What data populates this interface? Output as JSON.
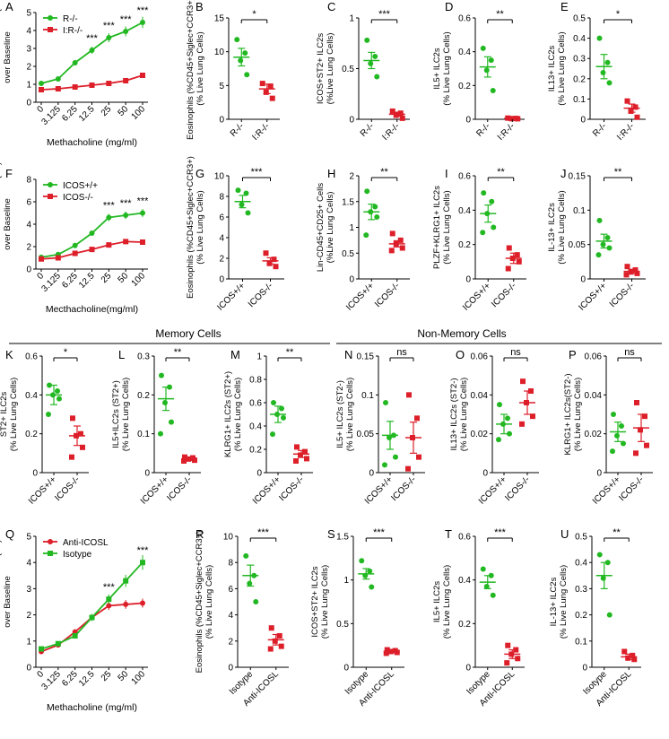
{
  "figure": {
    "section_labels": {
      "memory": "Memory Cells",
      "non_memory": "Non-Memory Cells"
    },
    "colors": {
      "green": "#22b822",
      "red": "#dd1f2a",
      "black": "#000000"
    }
  },
  "chart_data": [
    {
      "id": "A",
      "panel": "A",
      "type": "line",
      "title": "",
      "ylabel": "Fold Increase in Resistance (RL) over Baseline",
      "xlabel": "Methacholine (mg/ml)",
      "categories": [
        "0",
        "3.125",
        "6.25",
        "12.5",
        "25",
        "50",
        "100"
      ],
      "ylim": [
        0,
        5
      ],
      "yticks": [
        0,
        1,
        2,
        3,
        4,
        5
      ],
      "series": [
        {
          "name": "R-/-",
          "color": "green",
          "marker": "circle",
          "values": [
            1.05,
            1.3,
            2.2,
            2.9,
            3.6,
            3.95,
            4.45
          ]
        },
        {
          "name": "I:R-/-",
          "color": "red",
          "marker": "square",
          "values": [
            0.7,
            0.75,
            0.85,
            0.95,
            1.05,
            1.2,
            1.5
          ]
        }
      ],
      "significance": [
        "",
        "",
        "",
        "***",
        "***",
        "***",
        "***"
      ],
      "legend": "top-left"
    },
    {
      "id": "B",
      "panel": "B",
      "type": "scatter",
      "ylabel": "Eosinophils (%CD45+Siglec+CCR3+) (% Live Lung Cells)",
      "ylim": [
        0,
        15
      ],
      "yticks": [
        0,
        5,
        10,
        15
      ],
      "groups": [
        {
          "name": "R-/-",
          "color": "green",
          "marker": "circle",
          "mean": 9.2,
          "sem": 1.3,
          "points": [
            11.8,
            9.8,
            8.7,
            6.6
          ]
        },
        {
          "name": "I:R-/-",
          "color": "red",
          "marker": "square",
          "mean": 4.5,
          "sem": 0.7,
          "points": [
            5.3,
            4.9,
            4.0,
            3.1
          ]
        }
      ],
      "significance": "*"
    },
    {
      "id": "C",
      "panel": "C",
      "type": "scatter",
      "ylabel": "ICOS+ST2+ ILC2s (%Live Lung Cells)",
      "ylim": [
        0,
        1.0
      ],
      "yticks": [
        0,
        0.5,
        1.0
      ],
      "groups": [
        {
          "name": "R-/-",
          "color": "green",
          "marker": "circle",
          "mean": 0.58,
          "sem": 0.08,
          "points": [
            0.78,
            0.62,
            0.55,
            0.42
          ]
        },
        {
          "name": "I:R-/-",
          "color": "red",
          "marker": "square",
          "mean": 0.05,
          "sem": 0.02,
          "points": [
            0.08,
            0.06,
            0.04,
            0.01
          ]
        }
      ],
      "significance": "***"
    },
    {
      "id": "D",
      "panel": "D",
      "type": "scatter",
      "ylabel": "IL5+ ILC2s (% Live Lung Cells)",
      "ylim": [
        0,
        0.6
      ],
      "yticks": [
        0,
        0.2,
        0.4,
        0.6
      ],
      "groups": [
        {
          "name": "R-/-",
          "color": "green",
          "marker": "circle",
          "mean": 0.31,
          "sem": 0.06,
          "points": [
            0.42,
            0.35,
            0.29,
            0.17
          ]
        },
        {
          "name": "I:R-/-",
          "color": "red",
          "marker": "square",
          "mean": 0.005,
          "sem": 0.002,
          "points": [
            0.007,
            0.005,
            0.004,
            0.003
          ]
        }
      ],
      "significance": "**"
    },
    {
      "id": "E",
      "panel": "E",
      "type": "scatter",
      "ylabel": "IL13+ ILC2s (% Live Lung Cells)",
      "ylim": [
        0,
        0.5
      ],
      "yticks": [
        0,
        0.1,
        0.2,
        0.3,
        0.4,
        0.5
      ],
      "groups": [
        {
          "name": "R-/-",
          "color": "green",
          "marker": "circle",
          "mean": 0.26,
          "sem": 0.06,
          "points": [
            0.4,
            0.28,
            0.23,
            0.18
          ]
        },
        {
          "name": "I:R-/-",
          "color": "red",
          "marker": "square",
          "mean": 0.055,
          "sem": 0.02,
          "points": [
            0.09,
            0.06,
            0.04,
            0.01
          ]
        }
      ],
      "significance": "*"
    },
    {
      "id": "F",
      "panel": "F",
      "type": "line",
      "ylabel": "Fold Increase in Resistance (RL)over Baseline",
      "xlabel": "Mecthacholine(mg/ml)",
      "categories": [
        "0",
        "3.125",
        "6.25",
        "12.5",
        "25",
        "50",
        "100"
      ],
      "ylim": [
        0,
        8
      ],
      "yticks": [
        0,
        2,
        4,
        6,
        8
      ],
      "series": [
        {
          "name": "ICOS+/+",
          "color": "green",
          "marker": "circle",
          "values": [
            1.05,
            1.3,
            2.1,
            3.2,
            4.6,
            4.8,
            5.0
          ]
        },
        {
          "name": "ICOS-/-",
          "color": "red",
          "marker": "square",
          "values": [
            0.9,
            1.0,
            1.4,
            1.75,
            2.15,
            2.45,
            2.4
          ]
        }
      ],
      "significance": [
        "",
        "",
        "",
        "",
        "***",
        "***",
        "***"
      ],
      "legend": "top-left"
    },
    {
      "id": "G",
      "panel": "G",
      "type": "scatter",
      "ylabel": "Eosinophils (%CD45+Siglec+CCR3+) (% Live Lung Cells)",
      "ylim": [
        0,
        10
      ],
      "yticks": [
        0,
        2,
        4,
        6,
        8,
        10
      ],
      "groups": [
        {
          "name": "ICOS+/+",
          "color": "green",
          "marker": "circle",
          "mean": 7.5,
          "sem": 0.6,
          "points": [
            8.6,
            8.3,
            7.2,
            6.4
          ]
        },
        {
          "name": "ICOS-/-",
          "color": "red",
          "marker": "square",
          "mean": 1.75,
          "sem": 0.3,
          "points": [
            2.5,
            1.9,
            1.5,
            1.2
          ]
        }
      ],
      "significance": "***"
    },
    {
      "id": "H",
      "panel": "H",
      "type": "scatter",
      "ylabel": "Lin-CD45+CD25+ Cells (%Live Lung Cells)",
      "ylim": [
        0,
        2.0
      ],
      "yticks": [
        0,
        0.5,
        1.0,
        1.5,
        2.0
      ],
      "groups": [
        {
          "name": "ICOS+/+",
          "color": "green",
          "marker": "circle",
          "mean": 1.3,
          "sem": 0.15,
          "points": [
            1.7,
            1.4,
            1.3,
            1.2,
            0.85
          ]
        },
        {
          "name": "ICOS-/-",
          "color": "red",
          "marker": "square",
          "mean": 0.68,
          "sem": 0.06,
          "points": [
            0.88,
            0.75,
            0.68,
            0.6,
            0.55
          ]
        }
      ],
      "significance": "**"
    },
    {
      "id": "I",
      "panel": "I",
      "type": "scatter",
      "ylabel": "PLZF+KLRG1+ ILC2s (% Live Lung Cells)",
      "ylim": [
        0,
        0.6
      ],
      "yticks": [
        0,
        0.2,
        0.4,
        0.6
      ],
      "groups": [
        {
          "name": "ICOS+/+",
          "color": "green",
          "marker": "circle",
          "mean": 0.38,
          "sem": 0.05,
          "points": [
            0.5,
            0.45,
            0.38,
            0.3,
            0.27
          ]
        },
        {
          "name": "ICOS-/-",
          "color": "red",
          "marker": "square",
          "mean": 0.12,
          "sem": 0.03,
          "points": [
            0.18,
            0.14,
            0.12,
            0.1,
            0.06
          ]
        }
      ],
      "significance": "**"
    },
    {
      "id": "J",
      "panel": "J",
      "type": "scatter",
      "ylabel": "IL-13+ ILC2s (% Live Lung Cells)",
      "ylim": [
        0,
        0.15
      ],
      "yticks": [
        0,
        0.05,
        0.1,
        0.15
      ],
      "groups": [
        {
          "name": "ICOS+/+",
          "color": "green",
          "marker": "circle",
          "mean": 0.055,
          "sem": 0.01,
          "points": [
            0.085,
            0.06,
            0.05,
            0.045,
            0.035
          ]
        },
        {
          "name": "ICOS-/-",
          "color": "red",
          "marker": "square",
          "mean": 0.011,
          "sem": 0.003,
          "points": [
            0.018,
            0.013,
            0.01,
            0.008,
            0.006
          ]
        }
      ],
      "significance": "**"
    },
    {
      "id": "K",
      "panel": "K",
      "type": "scatter",
      "ylabel": "ST2+ ILC2s (% Live Lung Cells)",
      "ylim": [
        0,
        0.6
      ],
      "yticks": [
        0,
        0.2,
        0.4,
        0.6
      ],
      "groups": [
        {
          "name": "ICOS+/+",
          "color": "green",
          "marker": "circle",
          "mean": 0.4,
          "sem": 0.05,
          "points": [
            0.45,
            0.42,
            0.4,
            0.38,
            0.3
          ]
        },
        {
          "name": "ICOS-/-",
          "color": "red",
          "marker": "square",
          "mean": 0.19,
          "sem": 0.05,
          "points": [
            0.28,
            0.2,
            0.19,
            0.13,
            0.08
          ]
        }
      ],
      "significance": "*"
    },
    {
      "id": "L",
      "panel": "L",
      "type": "scatter",
      "ylabel": "IL5+ILC2s (ST2+) (% Live Lung Cells)",
      "ylim": [
        0,
        0.3
      ],
      "yticks": [
        0,
        0.1,
        0.2,
        0.3
      ],
      "groups": [
        {
          "name": "ICOS+/+",
          "color": "green",
          "marker": "circle",
          "mean": 0.19,
          "sem": 0.03,
          "points": [
            0.25,
            0.22,
            0.18,
            0.13,
            0.1
          ]
        },
        {
          "name": "ICOS-/-",
          "color": "red",
          "marker": "square",
          "mean": 0.035,
          "sem": 0.004,
          "points": [
            0.04,
            0.038,
            0.035,
            0.032,
            0.03
          ]
        }
      ],
      "significance": "**"
    },
    {
      "id": "M",
      "panel": "M",
      "type": "scatter",
      "ylabel": "KLRG1+ ILC2s (ST2+) (% Live Lung Cells)",
      "ylim": [
        0,
        1.0
      ],
      "yticks": [
        0,
        0.2,
        0.4,
        0.6,
        0.8,
        1.0
      ],
      "groups": [
        {
          "name": "ICOS+/+",
          "color": "green",
          "marker": "circle",
          "mean": 0.5,
          "sem": 0.07,
          "points": [
            0.6,
            0.55,
            0.5,
            0.47,
            0.33
          ]
        },
        {
          "name": "ICOS-/-",
          "color": "red",
          "marker": "square",
          "mean": 0.16,
          "sem": 0.03,
          "points": [
            0.22,
            0.18,
            0.15,
            0.12,
            0.1
          ]
        }
      ],
      "significance": "**"
    },
    {
      "id": "N",
      "panel": "N",
      "type": "scatter",
      "ylabel": "IL5+ ILC2s (ST2-) (% Live Lung Cells)",
      "ylim": [
        0,
        0.15
      ],
      "yticks": [
        0,
        0.05,
        0.1,
        0.15
      ],
      "groups": [
        {
          "name": "ICOS+/+",
          "color": "green",
          "marker": "circle",
          "mean": 0.048,
          "sem": 0.018,
          "points": [
            0.09,
            0.048,
            0.045,
            0.02,
            0.01
          ]
        },
        {
          "name": "ICOS-/-",
          "color": "red",
          "marker": "square",
          "mean": 0.045,
          "sem": 0.02,
          "points": [
            0.1,
            0.07,
            0.045,
            0.02,
            0.005
          ]
        }
      ],
      "significance": "ns"
    },
    {
      "id": "O",
      "panel": "O",
      "type": "scatter",
      "ylabel": "IL13+ ILC2s (ST2-) (% Live Lung Cells)",
      "ylim": [
        0,
        0.06
      ],
      "yticks": [
        0,
        0.02,
        0.04,
        0.06
      ],
      "groups": [
        {
          "name": "ICOS+/+",
          "color": "green",
          "marker": "circle",
          "mean": 0.025,
          "sem": 0.005,
          "points": [
            0.035,
            0.028,
            0.025,
            0.02,
            0.017
          ]
        },
        {
          "name": "ICOS-/-",
          "color": "red",
          "marker": "square",
          "mean": 0.036,
          "sem": 0.006,
          "points": [
            0.047,
            0.042,
            0.036,
            0.029,
            0.025
          ]
        }
      ],
      "significance": "ns"
    },
    {
      "id": "P",
      "panel": "P",
      "type": "scatter",
      "ylabel": "KLRG1+ ILC2s(ST2-) (% Live Lung Cells)",
      "ylim": [
        0,
        0.06
      ],
      "yticks": [
        0,
        0.02,
        0.04,
        0.06
      ],
      "groups": [
        {
          "name": "ICOS+/+",
          "color": "green",
          "marker": "circle",
          "mean": 0.021,
          "sem": 0.005,
          "points": [
            0.03,
            0.024,
            0.019,
            0.015,
            0.011
          ]
        },
        {
          "name": "ICOS-/-",
          "color": "red",
          "marker": "square",
          "mean": 0.023,
          "sem": 0.007,
          "points": [
            0.036,
            0.029,
            0.022,
            0.014,
            0.01
          ]
        }
      ],
      "significance": "ns"
    },
    {
      "id": "Q",
      "panel": "Q",
      "type": "line",
      "ylabel": "Fold Increase in Resistance (RL) over Baseline",
      "xlabel": "Methacholine (mg/ml)",
      "categories": [
        "0",
        "3.125",
        "6.25",
        "12.5",
        "25",
        "50",
        "100"
      ],
      "ylim": [
        0,
        5
      ],
      "yticks": [
        0,
        1,
        2,
        3,
        4,
        5
      ],
      "series": [
        {
          "name": "Anti-ICOSL",
          "color": "red",
          "marker": "circle",
          "values": [
            0.6,
            0.85,
            1.35,
            1.9,
            2.35,
            2.4,
            2.45
          ]
        },
        {
          "name": "Isotype",
          "color": "green",
          "marker": "square",
          "values": [
            0.7,
            0.9,
            1.2,
            1.9,
            2.6,
            3.3,
            4.0
          ]
        }
      ],
      "significance": [
        "",
        "",
        "",
        "",
        "***",
        "",
        "***"
      ],
      "legend": "top-left"
    },
    {
      "id": "R",
      "panel": "R",
      "type": "scatter",
      "ylabel": "Eosinophils (%CD45+Siglec+CCR3+) (% Live Lung Cells)",
      "ylim": [
        0,
        10
      ],
      "yticks": [
        0,
        2,
        4,
        6,
        8,
        10
      ],
      "groups": [
        {
          "name": "Isotype",
          "color": "green",
          "marker": "circle",
          "mean": 7.0,
          "sem": 0.8,
          "points": [
            8.5,
            7.0,
            6.4,
            5.0
          ]
        },
        {
          "name": "Anti-ICOSL",
          "color": "red",
          "marker": "square",
          "mean": 2.1,
          "sem": 0.4,
          "points": [
            3.0,
            2.4,
            2.0,
            1.6,
            1.4
          ]
        }
      ],
      "significance": "***"
    },
    {
      "id": "S",
      "panel": "S",
      "type": "scatter",
      "ylabel": "ICOS+ST2+ ILC2s (% Live Lung Cells)",
      "ylim": [
        0,
        1.5
      ],
      "yticks": [
        0,
        0.5,
        1.0,
        1.5
      ],
      "groups": [
        {
          "name": "Isotype",
          "color": "green",
          "marker": "circle",
          "mean": 1.07,
          "sem": 0.06,
          "points": [
            1.22,
            1.1,
            1.05,
            0.92
          ]
        },
        {
          "name": "Anti-ICOSL",
          "color": "red",
          "marker": "square",
          "mean": 0.18,
          "sem": 0.01,
          "points": [
            0.2,
            0.19,
            0.18,
            0.17,
            0.16
          ]
        }
      ],
      "significance": "***"
    },
    {
      "id": "T",
      "panel": "T",
      "type": "scatter",
      "ylabel": "IL5+ ILC2s (% Live Lung Cells)",
      "ylim": [
        0,
        0.6
      ],
      "yticks": [
        0,
        0.2,
        0.4,
        0.6
      ],
      "groups": [
        {
          "name": "Isotype",
          "color": "green",
          "marker": "circle",
          "mean": 0.39,
          "sem": 0.03,
          "points": [
            0.45,
            0.42,
            0.37,
            0.33
          ]
        },
        {
          "name": "Anti-ICOSL",
          "color": "red",
          "marker": "square",
          "mean": 0.06,
          "sem": 0.02,
          "points": [
            0.1,
            0.08,
            0.06,
            0.04,
            0.02
          ]
        }
      ],
      "significance": "***"
    },
    {
      "id": "U",
      "panel": "U",
      "type": "scatter",
      "ylabel": "IL-13+ ILC2s (% Live Lung Cells)",
      "ylim": [
        0,
        0.5
      ],
      "yticks": [
        0,
        0.1,
        0.2,
        0.3,
        0.4,
        0.5
      ],
      "groups": [
        {
          "name": "Isotype",
          "color": "green",
          "marker": "circle",
          "mean": 0.35,
          "sem": 0.05,
          "points": [
            0.43,
            0.4,
            0.34,
            0.2
          ]
        },
        {
          "name": "Anti-ICOSL",
          "color": "red",
          "marker": "square",
          "mean": 0.04,
          "sem": 0.01,
          "points": [
            0.06,
            0.045,
            0.035,
            0.03
          ]
        }
      ],
      "significance": "**"
    }
  ]
}
